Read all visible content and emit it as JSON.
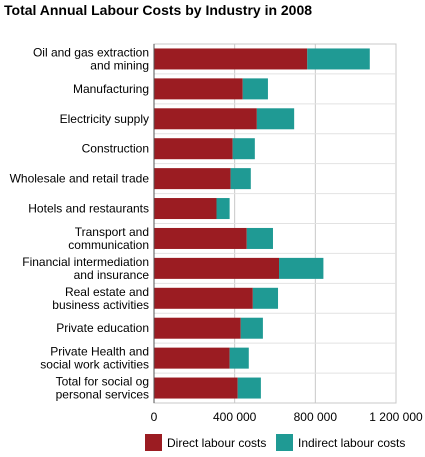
{
  "chart_data": {
    "type": "bar",
    "orientation": "horizontal",
    "stacked": true,
    "title": "Total Annual Labour Costs by Industry in 2008",
    "xlabel": "",
    "ylabel": "",
    "xlim": [
      0,
      1200000
    ],
    "xticks": [
      0,
      400000,
      800000,
      1200000
    ],
    "xtick_labels": [
      "0",
      "400 000",
      "800 000",
      "1 200 000"
    ],
    "grid": true,
    "legend_position": "bottom",
    "categories": [
      "Oil and gas extraction\nand mining",
      "Manufacturing",
      "Electricity supply",
      "Construction",
      "Wholesale and retail trade",
      "Hotels and restaurants",
      "Transport and\ncommunication",
      "Financial intermediation\nand insurance",
      "Real estate and\nbusiness activities",
      "Private education",
      "Private Health and\nsocial work activities",
      "Total for social og\npersonal services"
    ],
    "series": [
      {
        "name": "Direct labour costs",
        "color": "#9b1c22",
        "values": [
          760000,
          440000,
          510000,
          390000,
          380000,
          310000,
          460000,
          620000,
          490000,
          430000,
          375000,
          415000
        ]
      },
      {
        "name": "Indirect labour costs",
        "color": "#1f9a94",
        "values": [
          310000,
          125000,
          185000,
          110000,
          100000,
          65000,
          130000,
          220000,
          125000,
          110000,
          95000,
          115000
        ]
      }
    ]
  }
}
